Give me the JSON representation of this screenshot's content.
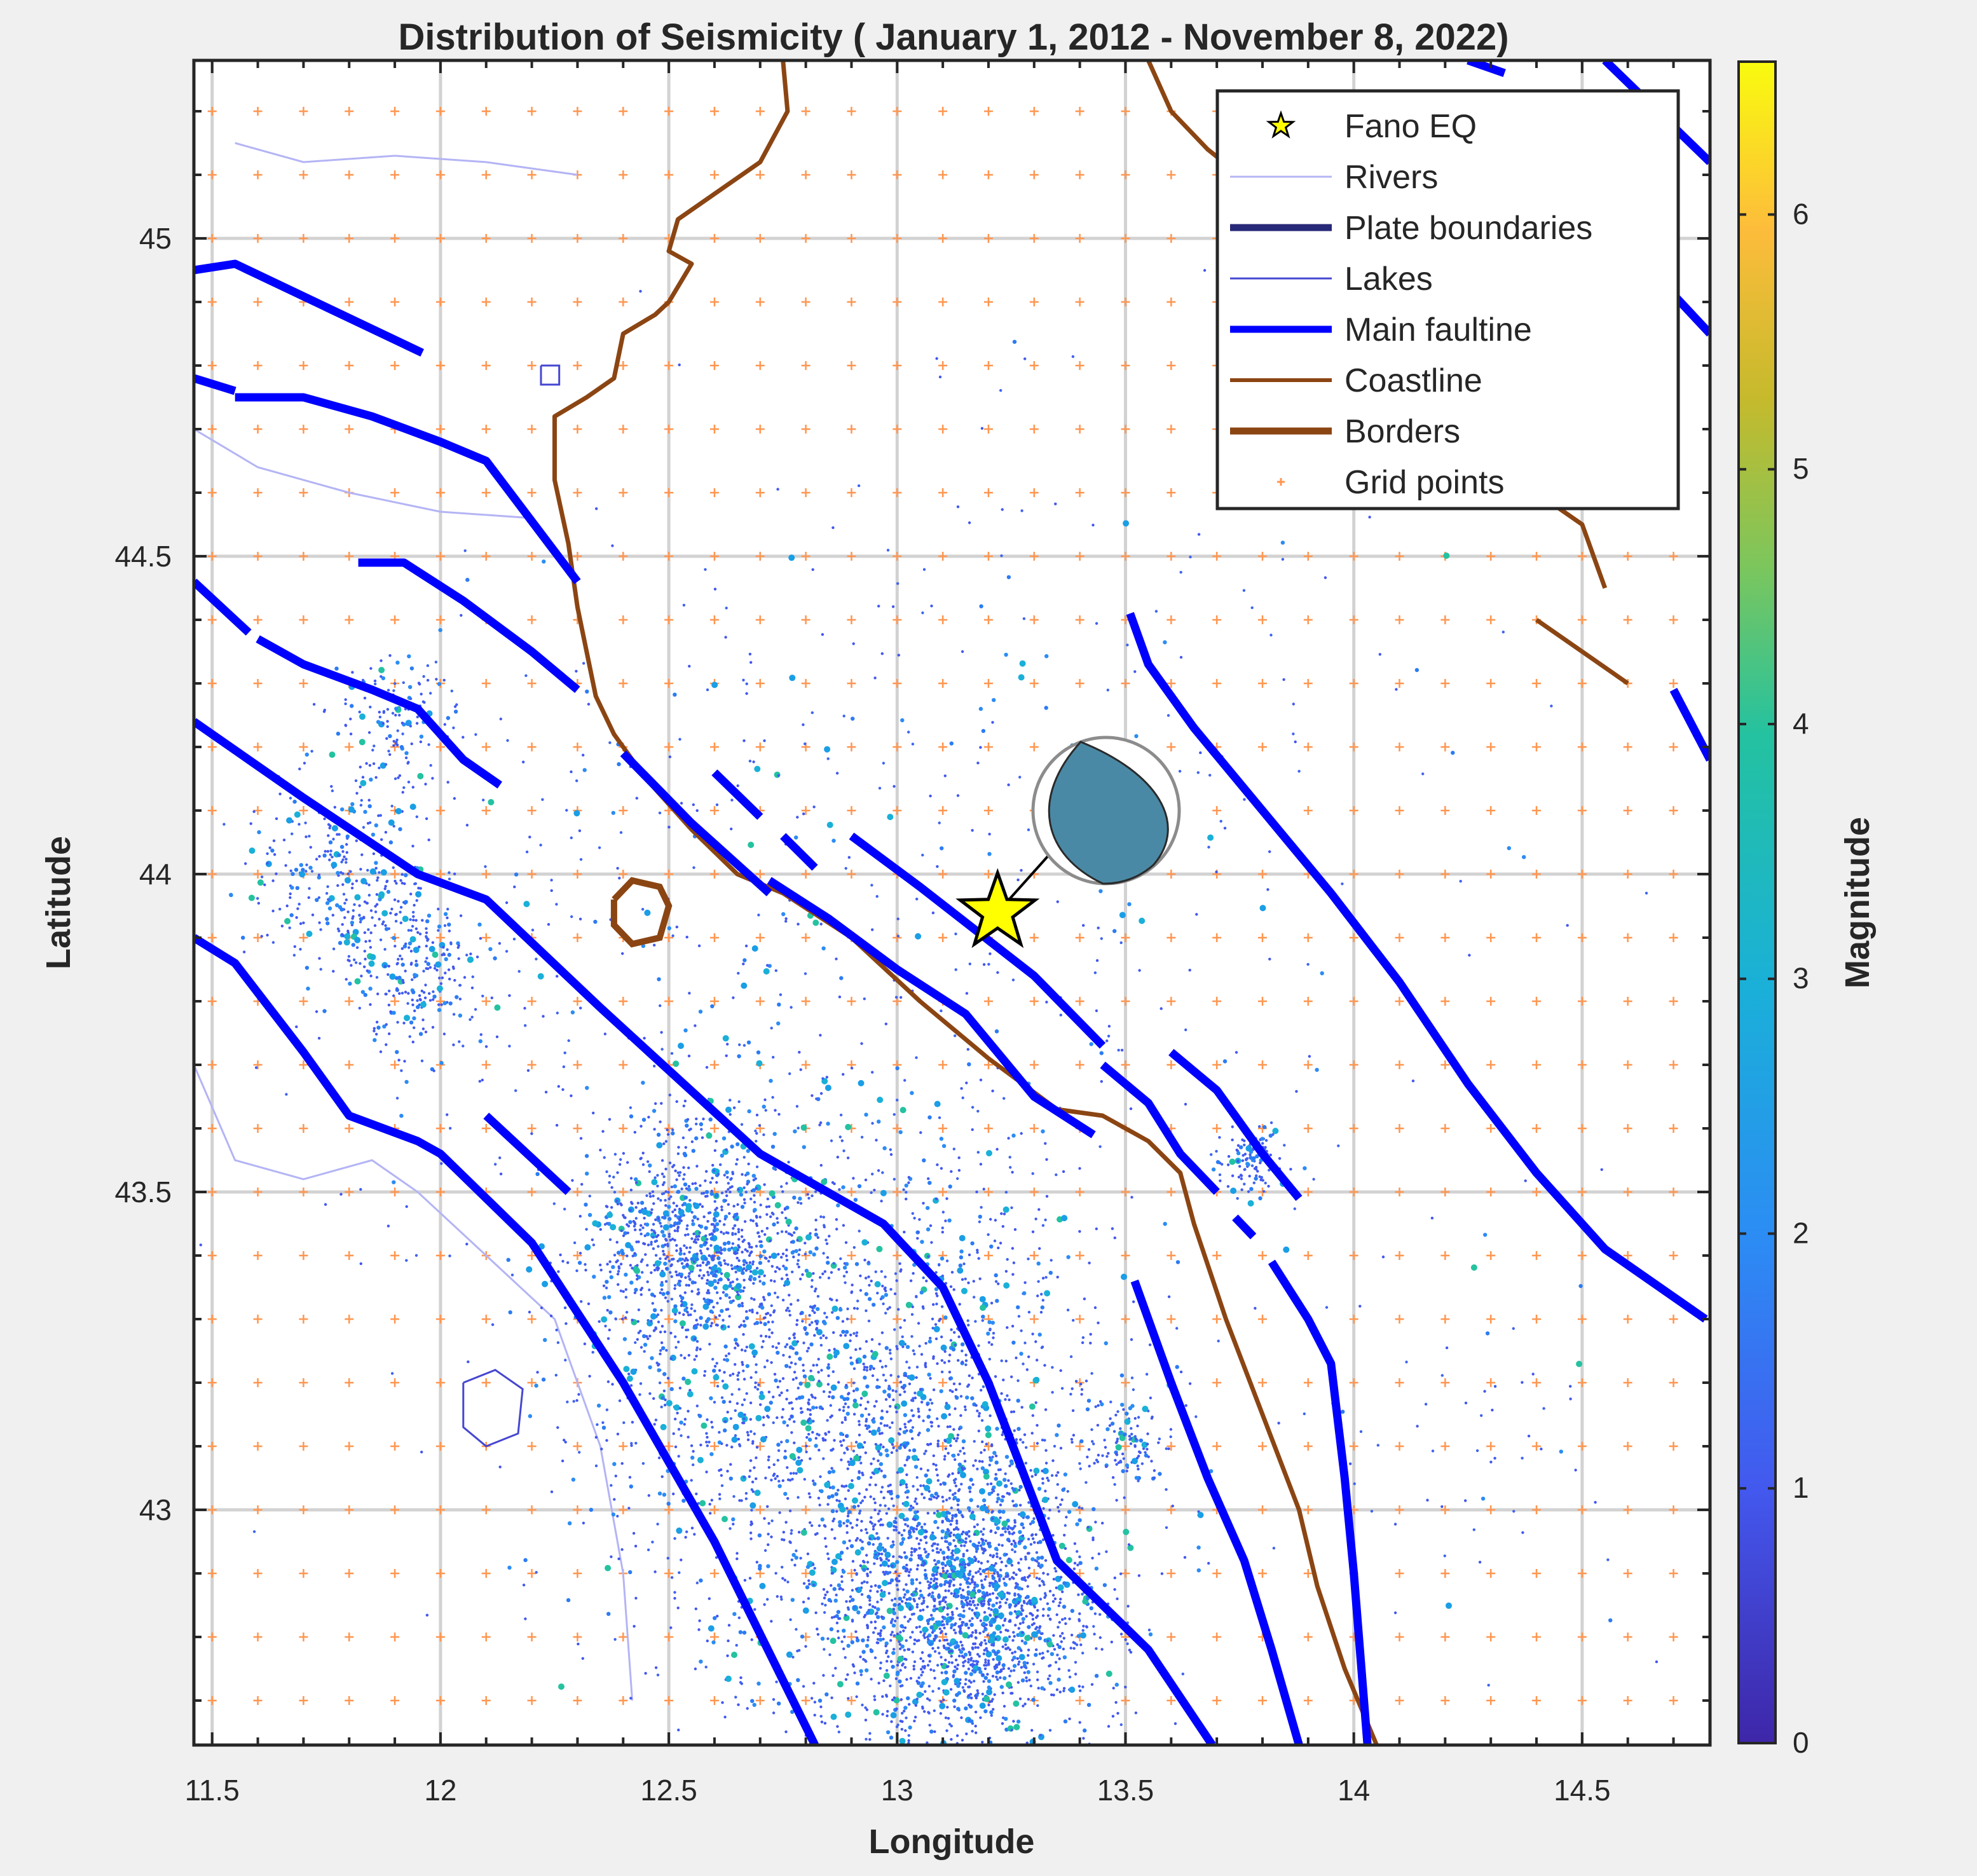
{
  "title": "Distribution of Seismicity ( January 1, 2012 - November 8, 2022)",
  "axes": {
    "xlabel": "Longitude",
    "ylabel": "Latitude",
    "xlim": [
      11.46,
      14.78
    ],
    "ylim": [
      42.63,
      45.28
    ],
    "xticks": [
      11.5,
      12,
      12.5,
      13,
      13.5,
      14,
      14.5
    ],
    "xtick_labels": [
      "11.5",
      "12",
      "12.5",
      "13",
      "13.5",
      "14",
      "14.5"
    ],
    "yticks": [
      43,
      43.5,
      44,
      44.5,
      45
    ],
    "ytick_labels": [
      "43",
      "43.5",
      "44",
      "44.5",
      "45"
    ],
    "grid": true
  },
  "colorbar": {
    "label": "Magnitude",
    "range": [
      0,
      6.6
    ],
    "ticks": [
      0,
      1,
      2,
      3,
      4,
      5,
      6
    ],
    "tick_labels": [
      "0",
      "1",
      "2",
      "3",
      "4",
      "5",
      "6"
    ],
    "colormap": "parula"
  },
  "legend": {
    "placement": "top-right",
    "items": [
      {
        "label": "Fano EQ",
        "symbol": "star",
        "color": "#ffff00"
      },
      {
        "label": "Rivers",
        "symbol": "thin-line",
        "color": "#b4b4f5"
      },
      {
        "label": "Plate boundaries",
        "symbol": "thick-line",
        "color": "#282878"
      },
      {
        "label": "Lakes",
        "symbol": "thin-line",
        "color": "#4646d2"
      },
      {
        "label": "Main faultine",
        "symbol": "thick-line",
        "color": "#0000ff"
      },
      {
        "label": "Coastline",
        "symbol": "line",
        "color": "#8b4513"
      },
      {
        "label": "Borders",
        "symbol": "thick-line",
        "color": "#8b4513"
      },
      {
        "label": "Grid points",
        "symbol": "plus",
        "color": "#ff9650"
      }
    ]
  },
  "chart_data": {
    "type": "scatter",
    "title": "Distribution of Seismicity ( January 1, 2012 - November 8, 2022)",
    "xlabel": "Longitude",
    "ylabel": "Latitude",
    "xlim": [
      11.46,
      14.78
    ],
    "ylim": [
      42.63,
      45.28
    ],
    "fano_eq": {
      "lon": 13.22,
      "lat": 43.94
    },
    "grid_points": {
      "lon_start": 11.5,
      "lon_step": 0.1,
      "lat_start": 42.7,
      "lat_step": 0.1
    },
    "seismicity_clusters": [
      {
        "lon": 12.9,
        "lat": 43.15,
        "spread": 0.35,
        "count": 2200
      },
      {
        "lon": 13.15,
        "lat": 42.85,
        "spread": 0.18,
        "count": 1800
      },
      {
        "lon": 12.55,
        "lat": 43.42,
        "spread": 0.15,
        "count": 900
      },
      {
        "lon": 11.78,
        "lat": 44.0,
        "spread": 0.12,
        "count": 300
      },
      {
        "lon": 11.95,
        "lat": 43.85,
        "spread": 0.1,
        "count": 250
      },
      {
        "lon": 11.9,
        "lat": 44.25,
        "spread": 0.09,
        "count": 150
      },
      {
        "lon": 13.78,
        "lat": 43.55,
        "spread": 0.05,
        "count": 120
      },
      {
        "lon": 13.5,
        "lat": 43.1,
        "spread": 0.05,
        "count": 100
      },
      {
        "lon": 12.5,
        "lat": 43.8,
        "spread": 0.5,
        "count": 400
      },
      {
        "lon": 13.3,
        "lat": 44.1,
        "spread": 0.6,
        "count": 250
      },
      {
        "lon": 14.2,
        "lat": 43.1,
        "spread": 0.25,
        "count": 60
      }
    ],
    "main_faultlines": [
      [
        [
          11.46,
          44.95
        ],
        [
          11.55,
          44.96
        ],
        [
          11.96,
          44.82
        ]
      ],
      [
        [
          11.46,
          44.78
        ],
        [
          11.55,
          44.76
        ]
      ],
      [
        [
          11.55,
          44.75
        ],
        [
          11.7,
          44.75
        ],
        [
          11.85,
          44.72
        ],
        [
          12.0,
          44.68
        ],
        [
          12.1,
          44.65
        ],
        [
          12.3,
          44.46
        ]
      ],
      [
        [
          11.82,
          44.49
        ],
        [
          11.92,
          44.49
        ],
        [
          12.05,
          44.43
        ],
        [
          12.2,
          44.35
        ],
        [
          12.3,
          44.29
        ]
      ],
      [
        [
          11.46,
          44.46
        ],
        [
          11.58,
          44.38
        ]
      ],
      [
        [
          11.6,
          44.37
        ],
        [
          11.7,
          44.33
        ],
        [
          11.85,
          44.29
        ],
        [
          11.95,
          44.26
        ],
        [
          12.05,
          44.18
        ],
        [
          12.13,
          44.14
        ]
      ],
      [
        [
          11.46,
          44.24
        ],
        [
          11.7,
          44.12
        ],
        [
          11.95,
          44.0
        ],
        [
          12.1,
          43.96
        ],
        [
          12.35,
          43.79
        ],
        [
          12.7,
          43.56
        ],
        [
          12.97,
          43.45
        ],
        [
          13.1,
          43.35
        ],
        [
          13.2,
          43.2
        ],
        [
          13.35,
          42.92
        ],
        [
          13.55,
          42.78
        ],
        [
          13.69,
          42.63
        ]
      ],
      [
        [
          11.46,
          43.9
        ],
        [
          11.55,
          43.86
        ],
        [
          11.7,
          43.72
        ],
        [
          11.8,
          43.62
        ],
        [
          11.95,
          43.58
        ],
        [
          12.0,
          43.56
        ],
        [
          12.2,
          43.42
        ],
        [
          12.4,
          43.2
        ],
        [
          12.6,
          42.95
        ],
        [
          12.82,
          42.63
        ]
      ],
      [
        [
          12.1,
          43.62
        ],
        [
          12.28,
          43.5
        ]
      ],
      [
        [
          12.4,
          44.19
        ],
        [
          12.55,
          44.08
        ],
        [
          12.72,
          43.97
        ]
      ],
      [
        [
          12.6,
          44.16
        ],
        [
          12.7,
          44.09
        ]
      ],
      [
        [
          12.75,
          44.06
        ],
        [
          12.82,
          44.01
        ]
      ],
      [
        [
          12.9,
          44.06
        ],
        [
          13.05,
          43.98
        ],
        [
          13.3,
          43.84
        ],
        [
          13.45,
          43.73
        ]
      ],
      [
        [
          12.72,
          43.99
        ],
        [
          12.85,
          43.93
        ],
        [
          13.0,
          43.85
        ],
        [
          13.15,
          43.78
        ],
        [
          13.3,
          43.65
        ],
        [
          13.43,
          43.59
        ]
      ],
      [
        [
          13.45,
          43.7
        ],
        [
          13.55,
          43.64
        ],
        [
          13.62,
          43.56
        ],
        [
          13.7,
          43.5
        ]
      ],
      [
        [
          13.6,
          43.72
        ],
        [
          13.7,
          43.66
        ],
        [
          13.8,
          43.56
        ],
        [
          13.88,
          43.49
        ]
      ],
      [
        [
          13.52,
          43.36
        ],
        [
          13.6,
          43.2
        ],
        [
          13.68,
          43.05
        ],
        [
          13.76,
          42.92
        ],
        [
          13.82,
          42.78
        ],
        [
          13.88,
          42.63
        ]
      ],
      [
        [
          13.74,
          43.46
        ],
        [
          13.78,
          43.43
        ]
      ],
      [
        [
          13.82,
          43.39
        ],
        [
          13.9,
          43.3
        ],
        [
          13.95,
          43.23
        ],
        [
          13.98,
          43.05
        ],
        [
          14.0,
          42.9
        ],
        [
          14.03,
          42.63
        ]
      ],
      [
        [
          13.51,
          44.41
        ],
        [
          13.55,
          44.33
        ],
        [
          13.65,
          44.23
        ],
        [
          13.8,
          44.1
        ],
        [
          13.95,
          43.97
        ],
        [
          14.1,
          43.83
        ],
        [
          14.25,
          43.67
        ],
        [
          14.4,
          43.53
        ],
        [
          14.55,
          43.41
        ],
        [
          14.77,
          43.3
        ]
      ],
      [
        [
          14.25,
          45.28
        ],
        [
          14.33,
          45.26
        ]
      ],
      [
        [
          14.55,
          45.28
        ],
        [
          14.78,
          45.12
        ]
      ],
      [
        [
          14.65,
          44.95
        ],
        [
          14.78,
          44.85
        ]
      ],
      [
        [
          14.7,
          44.29
        ],
        [
          14.78,
          44.18
        ]
      ]
    ],
    "coastline": [
      [
        [
          12.75,
          45.28
        ],
        [
          12.76,
          45.2
        ],
        [
          12.7,
          45.12
        ],
        [
          12.62,
          45.08
        ],
        [
          12.52,
          45.03
        ],
        [
          12.5,
          44.98
        ],
        [
          12.55,
          44.96
        ],
        [
          12.5,
          44.9
        ],
        [
          12.47,
          44.88
        ],
        [
          12.4,
          44.85
        ],
        [
          12.38,
          44.78
        ],
        [
          12.32,
          44.75
        ],
        [
          12.25,
          44.72
        ],
        [
          12.25,
          44.62
        ],
        [
          12.28,
          44.52
        ],
        [
          12.3,
          44.42
        ],
        [
          12.32,
          44.35
        ],
        [
          12.34,
          44.28
        ],
        [
          12.38,
          44.22
        ],
        [
          12.45,
          44.15
        ],
        [
          12.55,
          44.07
        ],
        [
          12.65,
          44.0
        ],
        [
          12.75,
          43.97
        ],
        [
          12.9,
          43.9
        ],
        [
          13.05,
          43.8
        ],
        [
          13.2,
          43.71
        ],
        [
          13.35,
          43.63
        ],
        [
          13.45,
          43.62
        ],
        [
          13.55,
          43.58
        ],
        [
          13.62,
          43.53
        ],
        [
          13.65,
          43.45
        ],
        [
          13.72,
          43.3
        ],
        [
          13.8,
          43.15
        ],
        [
          13.88,
          43.0
        ],
        [
          13.92,
          42.88
        ],
        [
          13.98,
          42.75
        ],
        [
          14.05,
          42.63
        ]
      ],
      [
        [
          13.55,
          45.28
        ],
        [
          13.6,
          45.2
        ],
        [
          13.68,
          45.14
        ],
        [
          13.75,
          45.1
        ],
        [
          13.82,
          45.05
        ],
        [
          13.88,
          45.0
        ],
        [
          13.95,
          44.95
        ],
        [
          14.05,
          44.9
        ],
        [
          14.15,
          44.85
        ]
      ],
      [
        [
          14.3,
          44.65
        ],
        [
          14.4,
          44.6
        ],
        [
          14.5,
          44.55
        ],
        [
          14.55,
          44.45
        ]
      ],
      [
        [
          14.4,
          44.4
        ],
        [
          14.5,
          44.35
        ],
        [
          14.6,
          44.3
        ]
      ]
    ],
    "island_border": [
      [
        12.38,
        43.96
      ],
      [
        12.42,
        43.99
      ],
      [
        12.48,
        43.98
      ],
      [
        12.5,
        43.95
      ],
      [
        12.48,
        43.9
      ],
      [
        12.42,
        43.89
      ],
      [
        12.38,
        43.92
      ],
      [
        12.38,
        43.96
      ]
    ],
    "rivers": [
      [
        [
          11.46,
          44.7
        ],
        [
          11.6,
          44.64
        ],
        [
          11.8,
          44.6
        ],
        [
          12.0,
          44.57
        ],
        [
          12.2,
          44.56
        ]
      ],
      [
        [
          11.55,
          45.15
        ],
        [
          11.7,
          45.12
        ],
        [
          11.9,
          45.13
        ],
        [
          12.1,
          45.12
        ],
        [
          12.3,
          45.1
        ]
      ],
      [
        [
          11.46,
          43.7
        ],
        [
          11.55,
          43.55
        ],
        [
          11.7,
          43.52
        ],
        [
          11.85,
          43.55
        ],
        [
          11.95,
          43.5
        ],
        [
          12.1,
          43.4
        ],
        [
          12.25,
          43.3
        ],
        [
          12.35,
          43.1
        ],
        [
          12.4,
          42.9
        ],
        [
          12.42,
          42.7
        ]
      ]
    ],
    "lakes": [
      [
        [
          12.05,
          43.2
        ],
        [
          12.12,
          43.22
        ],
        [
          12.18,
          43.19
        ],
        [
          12.17,
          43.12
        ],
        [
          12.1,
          43.1
        ],
        [
          12.05,
          43.13
        ],
        [
          12.05,
          43.2
        ]
      ],
      [
        [
          12.22,
          44.8
        ],
        [
          12.26,
          44.8
        ],
        [
          12.26,
          44.77
        ],
        [
          12.22,
          44.77
        ],
        [
          12.22,
          44.8
        ]
      ]
    ]
  }
}
